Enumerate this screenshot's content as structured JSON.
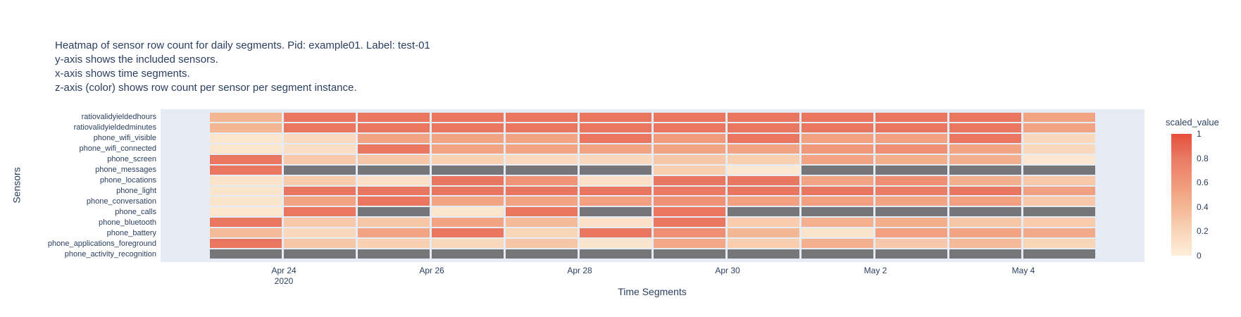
{
  "title": {
    "lines": [
      "Heatmap of sensor row count for daily segments. Pid: example01. Label: test-01",
      "y-axis shows the included sensors.",
      "x-axis shows time segments.",
      "z-axis (color) shows row count per sensor per segment instance."
    ]
  },
  "colors": {
    "text": "#2a3f5f",
    "plot_bg": "#e5ecf6",
    "nan_cell": "#767679",
    "scale": [
      [
        "0",
        "#fdeeda"
      ],
      [
        "0.2",
        "#f9d5b8"
      ],
      [
        "0.4",
        "#f4b794"
      ],
      [
        "0.6",
        "#f0987a"
      ],
      [
        "0.8",
        "#ea7a63"
      ],
      [
        "1",
        "#e4503c"
      ]
    ]
  },
  "chart_data": {
    "type": "heatmap",
    "title": "Heatmap of sensor row count for daily segments. Pid: example01. Label: test-01",
    "xlabel": "Time Segments",
    "ylabel": "Sensors",
    "colorbar_title": "scaled_value",
    "colorbar_ticks": [
      1,
      0.8,
      0.6,
      0.4,
      0.2,
      0
    ],
    "value_range": [
      0,
      1
    ],
    "grid": false,
    "legend_position": "right",
    "x_ticklabels": [
      "Apr 24",
      "Apr 26",
      "Apr 28",
      "Apr 30",
      "May 2",
      "May 4"
    ],
    "x_tick_year": "2020",
    "columns": [
      "Apr 23",
      "Apr 24",
      "Apr 25",
      "Apr 26",
      "Apr 27",
      "Apr 28",
      "Apr 29",
      "Apr 30",
      "May 1",
      "May 2",
      "May 3",
      "May 4"
    ],
    "rows": [
      "ratiovalidyieldedhours",
      "ratiovalidyieldedminutes",
      "phone_wifi_visible",
      "phone_wifi_connected",
      "phone_screen",
      "phone_messages",
      "phone_locations",
      "phone_light",
      "phone_conversation",
      "phone_calls",
      "phone_bluetooth",
      "phone_battery",
      "phone_applications_foreground",
      "phone_activity_recognition"
    ],
    "values": [
      [
        0.4,
        0.82,
        0.82,
        0.82,
        0.82,
        0.82,
        0.82,
        0.82,
        0.82,
        0.82,
        0.82,
        0.53
      ],
      [
        0.4,
        0.82,
        0.82,
        0.82,
        0.82,
        0.82,
        0.82,
        0.82,
        0.82,
        0.82,
        0.82,
        0.53
      ],
      [
        0.07,
        0.17,
        0.52,
        0.52,
        0.52,
        0.82,
        0.58,
        0.82,
        0.55,
        0.55,
        0.82,
        0.18
      ],
      [
        0.07,
        0.13,
        0.82,
        0.52,
        0.52,
        0.52,
        0.52,
        0.52,
        0.6,
        0.66,
        0.52,
        0.18
      ],
      [
        0.82,
        0.28,
        0.3,
        0.22,
        0.17,
        0.18,
        0.3,
        0.24,
        0.52,
        0.46,
        0.45,
        0.05
      ],
      [
        0.82,
        null,
        null,
        null,
        null,
        null,
        0.24,
        0.05,
        null,
        null,
        null,
        null
      ],
      [
        0.09,
        0.27,
        0.12,
        0.82,
        0.63,
        0.11,
        0.82,
        0.82,
        0.52,
        0.66,
        0.45,
        0.28
      ],
      [
        0.08,
        0.82,
        0.82,
        0.82,
        0.82,
        0.82,
        0.8,
        0.82,
        0.82,
        0.78,
        0.82,
        0.55
      ],
      [
        0.08,
        0.52,
        0.82,
        0.52,
        0.52,
        0.55,
        0.64,
        0.55,
        0.55,
        0.52,
        0.55,
        0.28
      ],
      [
        0.06,
        0.82,
        null,
        0.07,
        0.82,
        null,
        0.82,
        null,
        null,
        null,
        null,
        null
      ],
      [
        0.82,
        0.28,
        0.3,
        0.52,
        0.38,
        0.1,
        0.82,
        0.26,
        0.44,
        0.46,
        0.3,
        0.26
      ],
      [
        0.38,
        0.18,
        0.52,
        0.82,
        0.2,
        0.82,
        0.66,
        0.4,
        0.08,
        0.55,
        0.52,
        0.48
      ],
      [
        0.82,
        0.3,
        0.22,
        0.18,
        0.3,
        0.08,
        0.5,
        0.25,
        0.44,
        0.28,
        0.38,
        0.2
      ],
      [
        null,
        null,
        null,
        null,
        null,
        null,
        null,
        null,
        null,
        null,
        null,
        null
      ]
    ],
    "missing_value_color_note": "gray cells = no data"
  }
}
